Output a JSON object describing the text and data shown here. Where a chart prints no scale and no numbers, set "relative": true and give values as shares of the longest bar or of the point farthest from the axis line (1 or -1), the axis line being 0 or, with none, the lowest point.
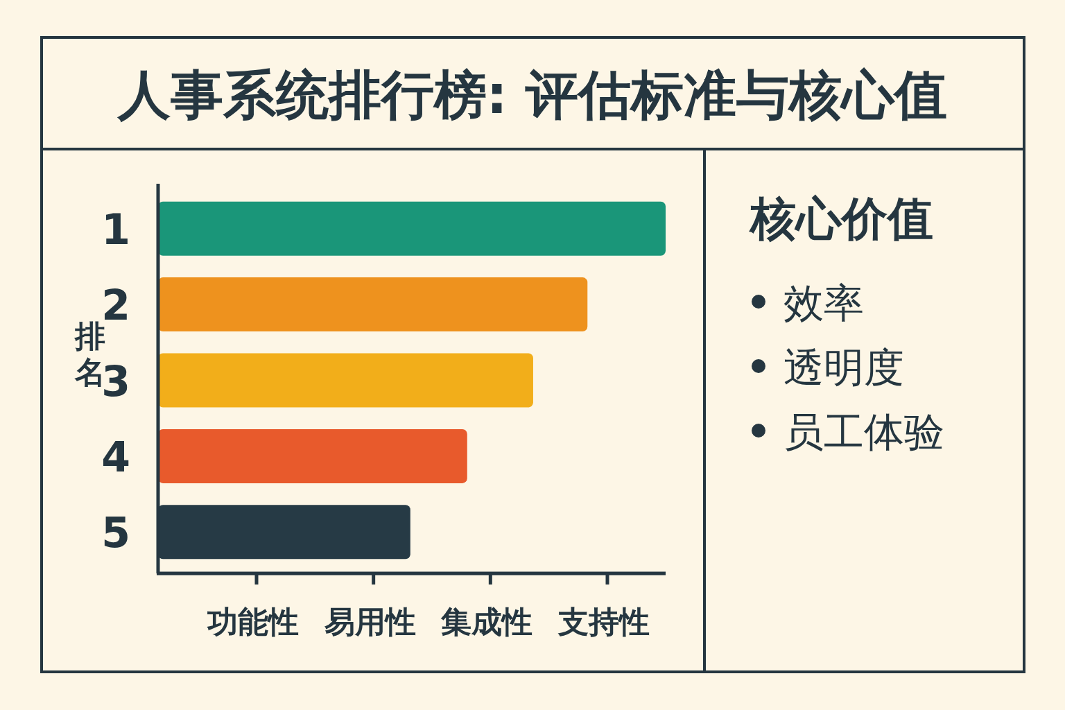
{
  "chart_data": [
    {
      "type": "bar",
      "orientation": "horizontal",
      "relative": true,
      "title": "人事系统排行榜: 评估标准与核心值",
      "ylabel": "排名",
      "categories": [
        "1",
        "2",
        "3",
        "4",
        "5"
      ],
      "values": [
        1,
        0.846,
        0.739,
        0.609,
        0.497
      ],
      "colors": [
        "#1a9679",
        "#ee921e",
        "#f2ae1a",
        "#e85a2c",
        "#263a45"
      ],
      "annotations": [
        "功能性",
        "易用性",
        "集成性",
        "支持性"
      ]
    },
    {
      "type": "other",
      "title": "核心价值",
      "annotations": [
        "效率",
        "透明度",
        "员工体验"
      ]
    }
  ]
}
